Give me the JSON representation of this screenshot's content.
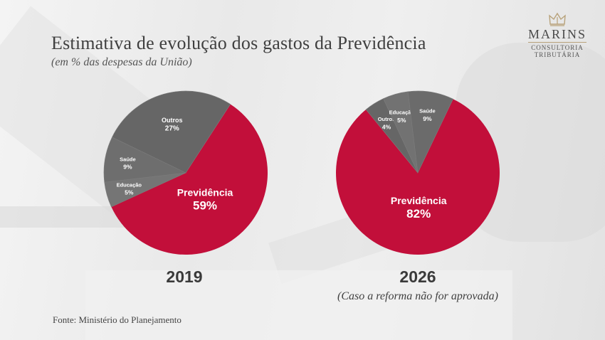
{
  "header": {
    "title": "Estimativa de evolução dos gastos da Previdência",
    "subtitle": "(em % das despesas da União)"
  },
  "logo": {
    "name": "MARINS",
    "line1": "CONSULTORIA",
    "line2": "TRIBUTÁRIA",
    "accent_color": "#b8a27a"
  },
  "chart_data": [
    {
      "type": "pie",
      "title": "2019",
      "slices": [
        {
          "label": "Previdência",
          "value": 59,
          "display": "59%",
          "color": "#c20f3a"
        },
        {
          "label": "Educação",
          "value": 5,
          "display": "5%",
          "color": "#757575"
        },
        {
          "label": "Saúde",
          "value": 9,
          "display": "9%",
          "color": "#6e6e6e"
        },
        {
          "label": "Outros",
          "value": 27,
          "display": "27%",
          "color": "#666666"
        }
      ]
    },
    {
      "type": "pie",
      "title": "2026",
      "note": "(Caso a reforma não for aprovada)",
      "slices": [
        {
          "label": "Previdência",
          "value": 82,
          "display": "82%",
          "color": "#c20f3a"
        },
        {
          "label": "Outros",
          "value": 4,
          "display": "4%",
          "color": "#666666"
        },
        {
          "label": "Educação",
          "value": 5,
          "display": "5%",
          "color": "#727272"
        },
        {
          "label": "Saúde",
          "value": 9,
          "display": "9%",
          "color": "#6b6b6b"
        }
      ]
    }
  ],
  "footer": {
    "source": "Fonte: Ministério do Planejamento"
  }
}
